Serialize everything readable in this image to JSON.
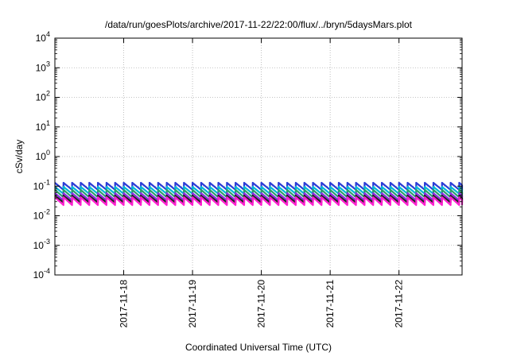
{
  "chart_data": {
    "type": "line",
    "title": "/data/run/goesPlots/archive/2017-11-22/22:00/flux/../bryn/5daysMars.plot",
    "xlabel": "Coordinated Universal Time (UTC)",
    "ylabel": "cSv/day",
    "y_scale": "log",
    "ylim": [
      0.0001,
      10000
    ],
    "y_ticks": [
      {
        "value": 0.0001,
        "base": "10",
        "exp": "-4"
      },
      {
        "value": 0.001,
        "base": "10",
        "exp": "-3"
      },
      {
        "value": 0.01,
        "base": "10",
        "exp": "-2"
      },
      {
        "value": 0.1,
        "base": "10",
        "exp": "-1"
      },
      {
        "value": 1,
        "base": "10",
        "exp": "0"
      },
      {
        "value": 10,
        "base": "10",
        "exp": "1"
      },
      {
        "value": 100,
        "base": "10",
        "exp": "2"
      },
      {
        "value": 1000,
        "base": "10",
        "exp": "3"
      },
      {
        "value": 10000,
        "base": "10",
        "exp": "4"
      }
    ],
    "xlim": [
      "2017-11-17T00:00",
      "2017-11-22T22:00"
    ],
    "x_ticks": [
      "2017-11-18",
      "2017-11-19",
      "2017-11-20",
      "2017-11-21",
      "2017-11-22"
    ],
    "grid": true,
    "legend": "none",
    "sawtooth_period_hours": 3,
    "series": [
      {
        "color": "#2a3bd6",
        "peak": 0.13,
        "trough": 0.075
      },
      {
        "color": "#00b7d6",
        "peak": 0.095,
        "trough": 0.055
      },
      {
        "color": "#2a9d6b",
        "peak": 0.075,
        "trough": 0.042
      },
      {
        "color": "#8a2be2",
        "peak": 0.058,
        "trough": 0.033
      },
      {
        "color": "#222222",
        "peak": 0.048,
        "trough": 0.028
      },
      {
        "color": "#ff1fd0",
        "peak": 0.042,
        "trough": 0.023
      }
    ]
  }
}
